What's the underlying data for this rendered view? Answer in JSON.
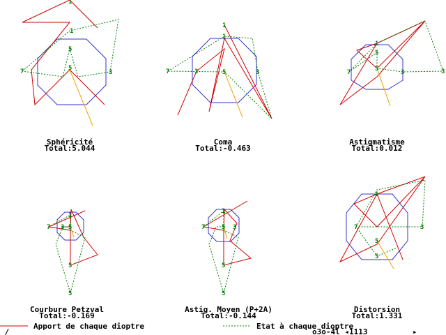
{
  "panels": [
    {
      "title": "Sphéricité",
      "total": "Total:5.044",
      "nodes": [
        "1",
        "1",
        "5",
        "5",
        "7",
        "3"
      ]
    },
    {
      "title": "Coma",
      "total": "Total:-0.463",
      "nodes": [
        "1",
        "1",
        "5",
        "7",
        "3",
        "3"
      ]
    },
    {
      "title": "Astigmatisme",
      "total": "Total:0.012",
      "nodes": [
        "1",
        "5",
        "5",
        "7",
        "3",
        "3"
      ]
    },
    {
      "title": "Courbure Petzval",
      "total": "Total:-0.169",
      "nodes": [
        "1",
        "5",
        "7",
        "3",
        "5",
        "5"
      ]
    },
    {
      "title": "Astig. Moyen (P+2A)",
      "total": "Total:-0.144",
      "nodes": [
        "1",
        "5",
        "7",
        "3",
        "5",
        "5"
      ]
    },
    {
      "title": "Distorsion",
      "total": "Total:1.331",
      "nodes": [
        "1",
        "7",
        "3",
        "5",
        "5"
      ]
    }
  ],
  "legend": {
    "red": "Apport de chaque dioptre",
    "green": "Etat à chaque dioptre"
  },
  "status": {
    "left": "_/_",
    "file": "o3o-4l ◂1113",
    "arrow": "▸"
  }
}
